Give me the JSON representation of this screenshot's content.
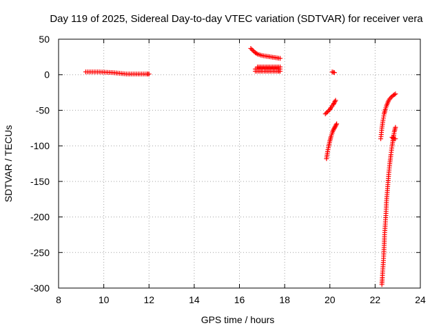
{
  "chart_data": {
    "type": "scatter",
    "title": "Day 119 of 2025, Sidereal Day-to-day VTEC variation (SDTVAR) for receiver vera",
    "xlabel": "GPS time / hours",
    "ylabel": "SDTVAR / TECUs",
    "xlim": [
      8,
      24
    ],
    "ylim": [
      -300,
      50
    ],
    "xticks": [
      8,
      10,
      12,
      14,
      16,
      18,
      20,
      22,
      24
    ],
    "yticks": [
      -300,
      -250,
      -200,
      -150,
      -100,
      -50,
      0,
      50
    ],
    "grid": true,
    "marker": "+",
    "color": "#ff0000",
    "segments": [
      {
        "name": "arc-1",
        "x": [
          9.2,
          9.5,
          9.8,
          10.1,
          10.4,
          10.7,
          11.0,
          11.3,
          11.6,
          11.9,
          12.0
        ],
        "y": [
          4,
          4,
          4,
          3.5,
          3,
          2,
          1,
          1,
          1,
          1,
          1
        ]
      },
      {
        "name": "arc-2",
        "x": [
          16.5,
          16.6,
          16.7,
          16.8,
          17.0,
          17.2,
          17.4,
          17.6,
          17.8
        ],
        "y": [
          37,
          34,
          31,
          29,
          27,
          26,
          25,
          24,
          23
        ]
      },
      {
        "name": "arc-3",
        "x": [
          16.7,
          16.9,
          17.1,
          17.3,
          17.5,
          17.7,
          17.8
        ],
        "y": [
          8,
          8,
          8,
          8,
          8,
          8,
          8
        ]
      },
      {
        "name": "arc-4",
        "x": [
          16.7,
          16.9,
          17.1,
          17.3,
          17.5,
          17.7,
          17.8
        ],
        "y": [
          5,
          5,
          5,
          5,
          5,
          5,
          5
        ]
      },
      {
        "name": "arc-5",
        "x": [
          16.8,
          17.0,
          17.2,
          17.4,
          17.6,
          17.8
        ],
        "y": [
          11,
          11,
          11,
          11,
          11,
          11
        ]
      },
      {
        "name": "arc-6",
        "x": [
          20.1,
          20.2
        ],
        "y": [
          4,
          3
        ]
      },
      {
        "name": "arc-7",
        "x": [
          19.8,
          19.9,
          20.0,
          20.05,
          20.1,
          20.15,
          20.2,
          20.25
        ],
        "y": [
          -55,
          -52,
          -49,
          -46,
          -44,
          -42,
          -39,
          -36
        ]
      },
      {
        "name": "arc-8",
        "x": [
          19.85,
          19.9,
          19.95,
          20.0,
          20.05,
          20.1,
          20.15,
          20.2,
          20.25,
          20.3
        ],
        "y": [
          -118,
          -108,
          -100,
          -93,
          -87,
          -82,
          -78,
          -75,
          -72,
          -69
        ]
      },
      {
        "name": "arc-9",
        "x": [
          22.25,
          22.3,
          22.35,
          22.4,
          22.45,
          22.5,
          22.55,
          22.6,
          22.7,
          22.8,
          22.9
        ],
        "y": [
          -90,
          -75,
          -64,
          -55,
          -49,
          -44,
          -40,
          -36,
          -32,
          -29,
          -27
        ]
      },
      {
        "name": "arc-10",
        "x": [
          22.3,
          22.32,
          22.35,
          22.38,
          22.4,
          22.42,
          22.45,
          22.48,
          22.5,
          22.55,
          22.6,
          22.65,
          22.7,
          22.75,
          22.8,
          22.85,
          22.9
        ],
        "y": [
          -295,
          -285,
          -270,
          -255,
          -240,
          -225,
          -210,
          -195,
          -180,
          -160,
          -140,
          -125,
          -112,
          -100,
          -90,
          -80,
          -74
        ]
      },
      {
        "name": "arc-11",
        "x": [
          22.75,
          22.8,
          22.85,
          22.9
        ],
        "y": [
          -88,
          -89,
          -90,
          -90
        ]
      }
    ]
  }
}
